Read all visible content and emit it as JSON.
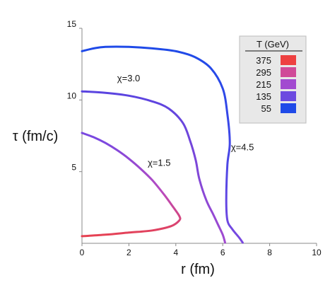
{
  "chart_data": {
    "type": "line",
    "xlabel": "r (fm)",
    "ylabel": "τ (fm/c)",
    "xlim": [
      0,
      10
    ],
    "ylim": [
      0,
      15
    ],
    "x_ticks": [
      "0",
      "2",
      "4",
      "6",
      "8",
      "10"
    ],
    "y_ticks": [
      "5",
      "10",
      "15"
    ],
    "grid": false,
    "legend": {
      "title": "T (GeV)",
      "placement": "top-right",
      "entries": [
        {
          "label": "375",
          "color": "#ee4040"
        },
        {
          "label": "295",
          "color": "#d04a98"
        },
        {
          "label": "215",
          "color": "#a24ad0"
        },
        {
          "label": "135",
          "color": "#6c4ae0"
        },
        {
          "label": "55",
          "color": "#1f4ae8"
        }
      ]
    },
    "series": [
      {
        "name": "χ=1.5",
        "x": [
          0.0,
          1.0,
          2.0,
          3.0,
          3.8,
          4.15,
          4.15,
          3.9,
          3.5,
          3.0,
          2.5,
          2.0,
          1.5,
          1.0,
          0.5,
          0.0
        ],
        "y": [
          0.5,
          0.6,
          0.75,
          0.9,
          1.2,
          1.6,
          1.9,
          2.5,
          3.4,
          4.4,
          5.2,
          5.9,
          6.5,
          7.0,
          7.4,
          7.7
        ]
      },
      {
        "name": "χ=3.0",
        "x": [
          0.0,
          1.0,
          2.0,
          3.0,
          3.7,
          4.3,
          4.6,
          4.85,
          5.0,
          5.3,
          5.6,
          5.8,
          6.0,
          6.1
        ],
        "y": [
          10.6,
          10.5,
          10.3,
          9.9,
          9.4,
          8.4,
          7.2,
          5.8,
          4.5,
          3.0,
          2.0,
          1.3,
          0.6,
          0.05
        ]
      },
      {
        "name": "χ=4.5",
        "x": [
          0.0,
          0.5,
          1.0,
          2.0,
          3.0,
          4.0,
          4.8,
          5.5,
          6.0,
          6.2,
          6.3,
          6.2,
          6.15,
          6.2,
          6.4,
          6.7,
          6.85
        ],
        "y": [
          13.4,
          13.6,
          13.7,
          13.7,
          13.6,
          13.4,
          13.0,
          12.2,
          10.8,
          9.0,
          7.0,
          5.5,
          3.0,
          1.6,
          1.0,
          0.4,
          0.05
        ]
      }
    ],
    "annotations": [
      {
        "text": "χ=1.5",
        "x": 2.8,
        "y": 5.4
      },
      {
        "text": "χ=3.0",
        "x": 1.5,
        "y": 11.3
      },
      {
        "text": "χ=4.5",
        "x": 6.35,
        "y": 6.5
      }
    ]
  }
}
